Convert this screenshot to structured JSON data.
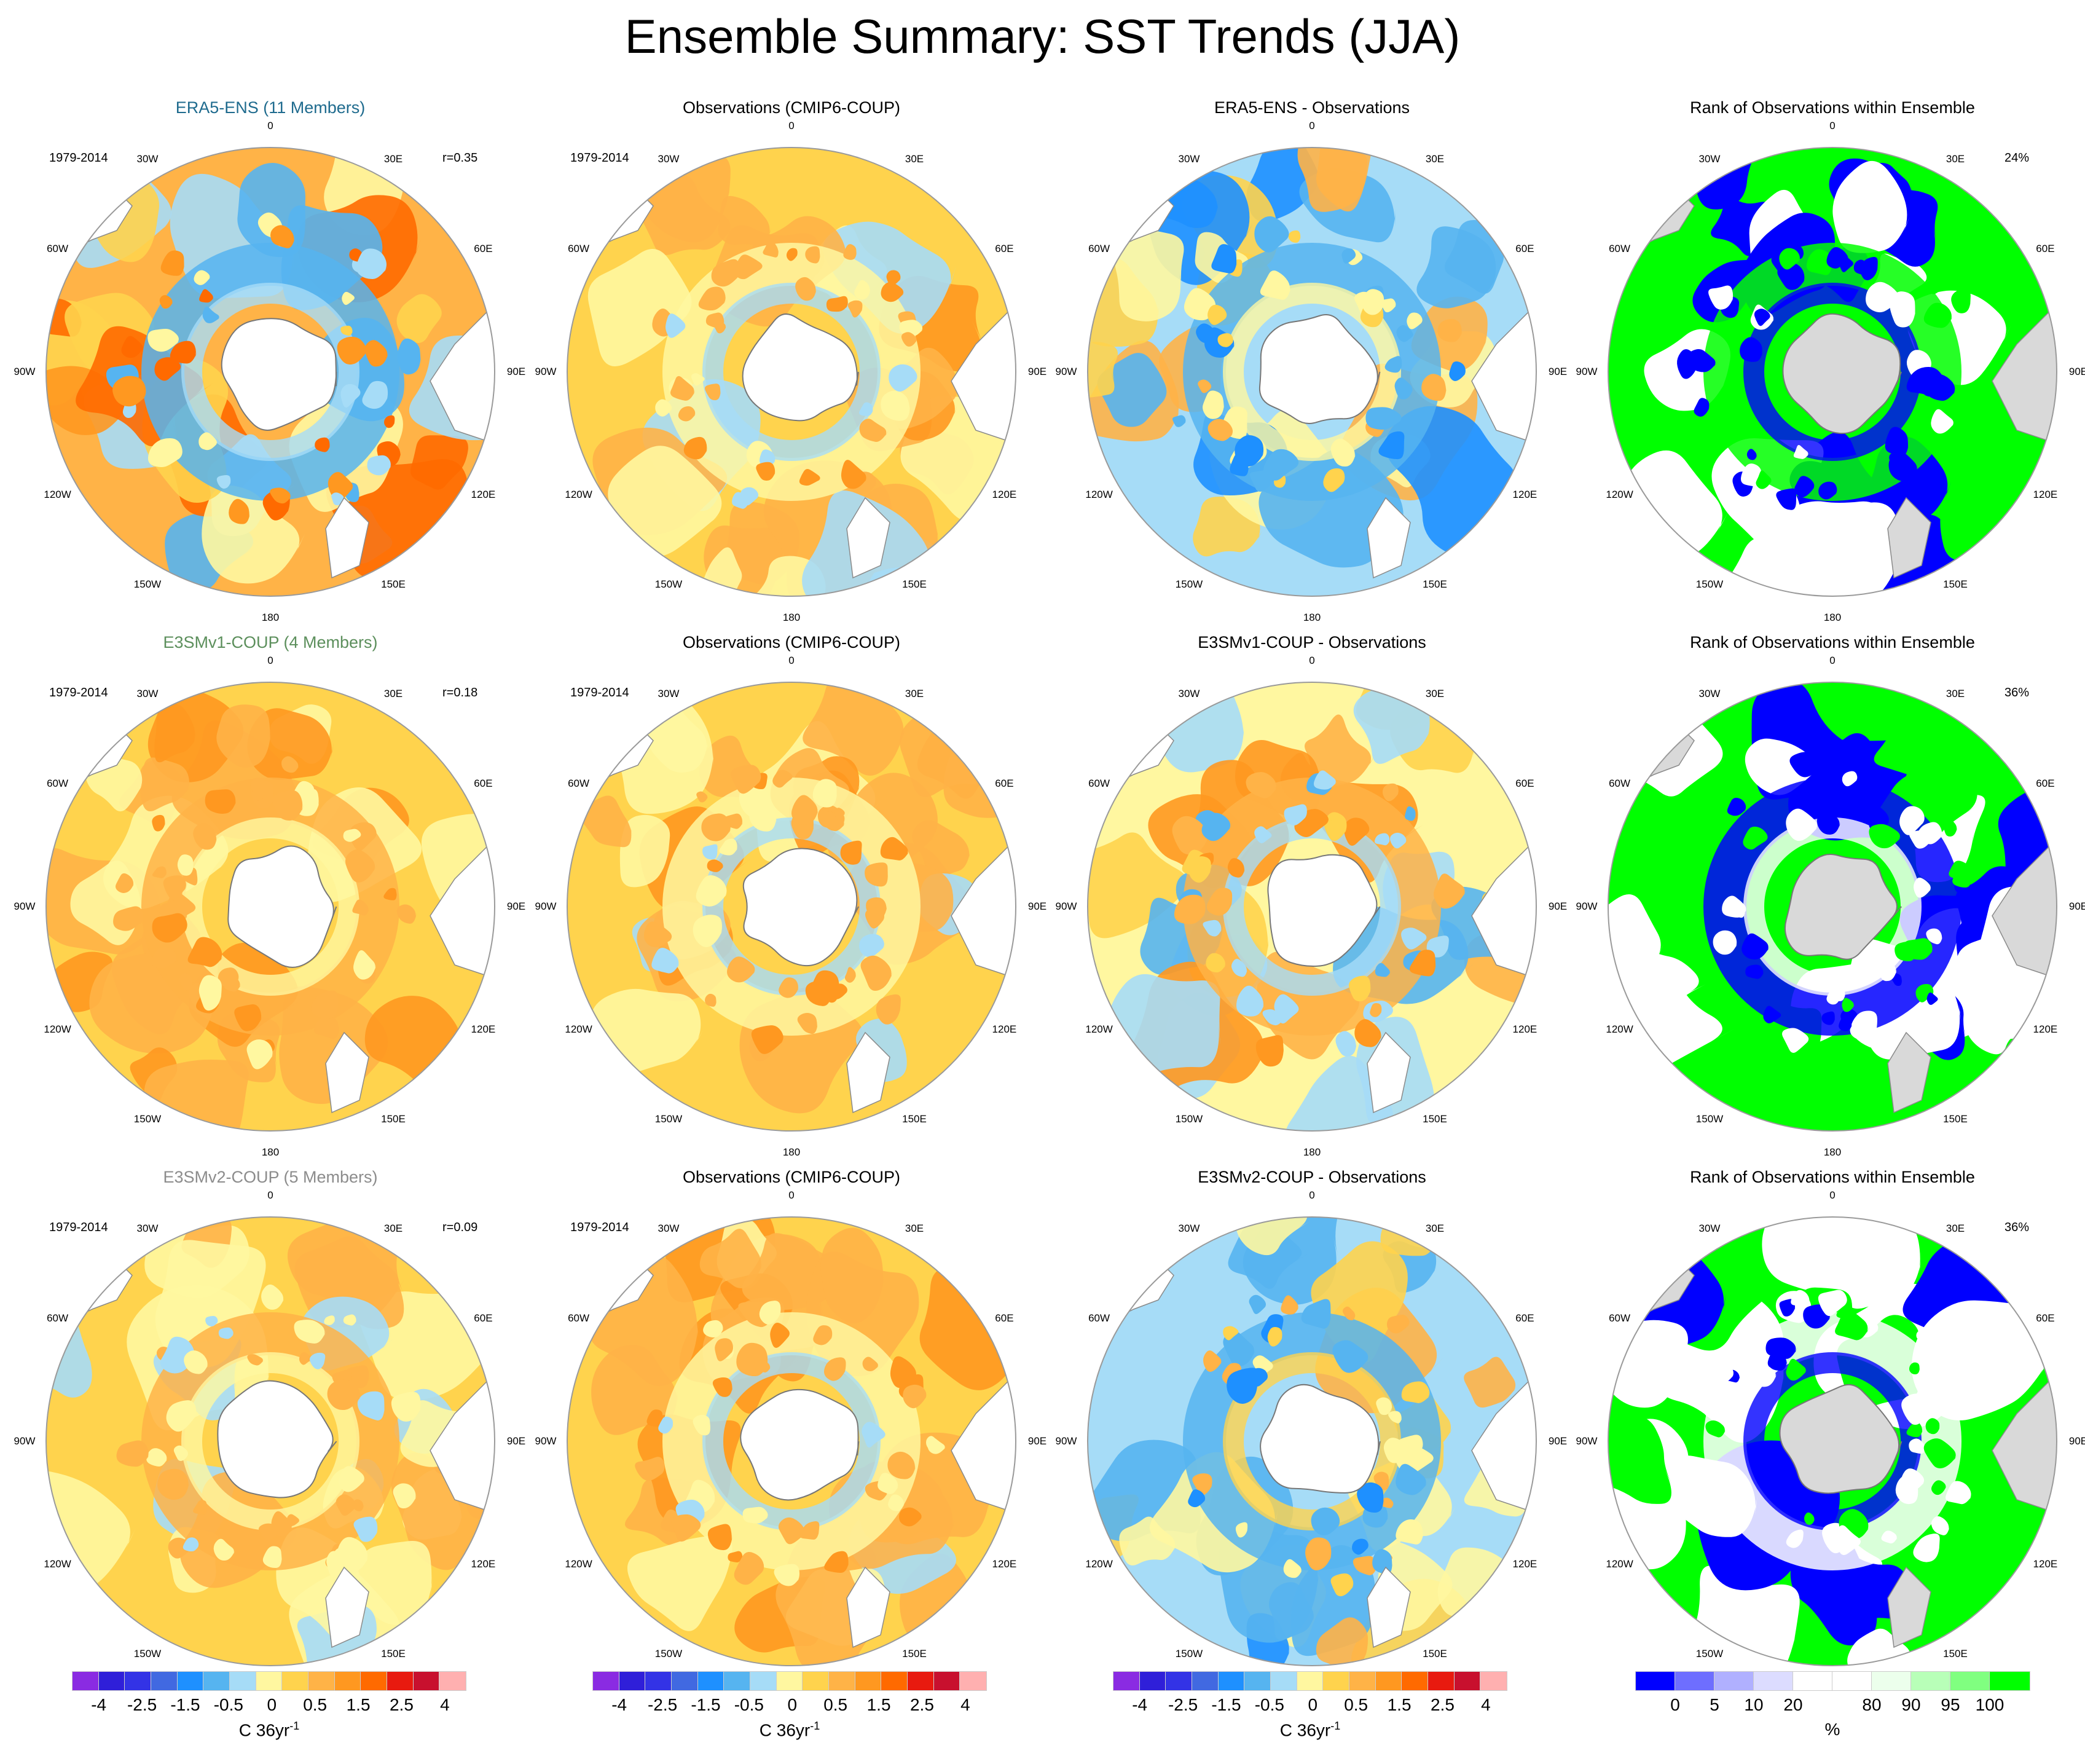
{
  "title": "Ensemble Summary: SST Trends (JJA)",
  "lon_labels": [
    "0",
    "30E",
    "60E",
    "90E",
    "120E",
    "150E",
    "180",
    "150W",
    "120W",
    "90W",
    "60W",
    "30W"
  ],
  "colors": {
    "land": "#ffffff",
    "rank_land": "#d9d9d9",
    "ring": "#9a9a9a",
    "era5_title": "#1f6b8e",
    "e3smv1_title": "#5c8f5c",
    "e3smv2_title": "#8c8c8c",
    "trend_palette": [
      "#8a2be2",
      "#2f1fd9",
      "#3333e6",
      "#4169e1",
      "#1e90ff",
      "#56b4f0",
      "#a6dcf7",
      "#fff7a0",
      "#ffd34d",
      "#ffb347",
      "#ff9820",
      "#ff6a00",
      "#e81a0f",
      "#c8102e",
      "#ffb0b0"
    ],
    "rank_palette": [
      "#0000ff",
      "#6e6eff",
      "#b0b0ff",
      "#dcdcff",
      "#ffffff",
      "#ffffff",
      "#ecffec",
      "#b8ffb8",
      "#80ff80",
      "#00ff00"
    ]
  },
  "rows": [
    {
      "name": "ERA5",
      "panels": [
        {
          "kind": "trend",
          "title": "ERA5-ENS (11 Members)",
          "title_color": "#1f6b8e",
          "period": "1979-2014",
          "stat": "r=0.35",
          "scheme": "warm-cool"
        },
        {
          "kind": "trend",
          "title": "Observations (CMIP6-COUP)",
          "period": "1979-2014",
          "stat": "",
          "scheme": "warm"
        },
        {
          "kind": "diff",
          "title": "ERA5-ENS - Observations",
          "period": "",
          "stat": "",
          "scheme": "cool"
        },
        {
          "kind": "rank",
          "title": "Rank of Observations within Ensemble",
          "period": "",
          "stat": "24%",
          "scheme": "rank-blue"
        }
      ]
    },
    {
      "name": "E3SMv1",
      "panels": [
        {
          "kind": "trend",
          "title": "E3SMv1-COUP (4 Members)",
          "title_color": "#5c8f5c",
          "period": "1979-2014",
          "stat": "r=0.18",
          "scheme": "warm-smooth"
        },
        {
          "kind": "trend",
          "title": "Observations (CMIP6-COUP)",
          "period": "1979-2014",
          "stat": "",
          "scheme": "warm"
        },
        {
          "kind": "diff",
          "title": "E3SMv1-COUP - Observations",
          "period": "",
          "stat": "",
          "scheme": "mixed"
        },
        {
          "kind": "rank",
          "title": "Rank of Observations within Ensemble",
          "period": "",
          "stat": "36%",
          "scheme": "rank-mixed"
        }
      ]
    },
    {
      "name": "E3SMv2",
      "panels": [
        {
          "kind": "trend",
          "title": "E3SMv2-COUP (5 Members)",
          "title_color": "#8c8c8c",
          "period": "1979-2014",
          "stat": "r=0.09",
          "scheme": "warm-pale"
        },
        {
          "kind": "trend",
          "title": "Observations (CMIP6-COUP)",
          "period": "1979-2014",
          "stat": "",
          "scheme": "warm"
        },
        {
          "kind": "diff",
          "title": "E3SMv2-COUP - Observations",
          "period": "",
          "stat": "",
          "scheme": "cool-blue"
        },
        {
          "kind": "rank",
          "title": "Rank of Observations within Ensemble",
          "period": "",
          "stat": "36%",
          "scheme": "rank-green"
        }
      ]
    }
  ],
  "colorbars": [
    {
      "name": "trend",
      "ticks": [
        "-4",
        "-2.5",
        "-1.5",
        "-0.5",
        "0",
        "0.5",
        "1.5",
        "2.5",
        "4"
      ],
      "unit": "C 36yr",
      "unit_sup": "-1"
    },
    {
      "name": "trend",
      "ticks": [
        "-4",
        "-2.5",
        "-1.5",
        "-0.5",
        "0",
        "0.5",
        "1.5",
        "2.5",
        "4"
      ],
      "unit": "C 36yr",
      "unit_sup": "-1"
    },
    {
      "name": "trend",
      "ticks": [
        "-4",
        "-2.5",
        "-1.5",
        "-0.5",
        "0",
        "0.5",
        "1.5",
        "2.5",
        "4"
      ],
      "unit": "C 36yr",
      "unit_sup": "-1"
    },
    {
      "name": "rank",
      "ticks": [
        "0",
        "5",
        "10",
        "20",
        "80",
        "90",
        "95",
        "100"
      ],
      "unit": "%",
      "unit_sup": ""
    }
  ]
}
